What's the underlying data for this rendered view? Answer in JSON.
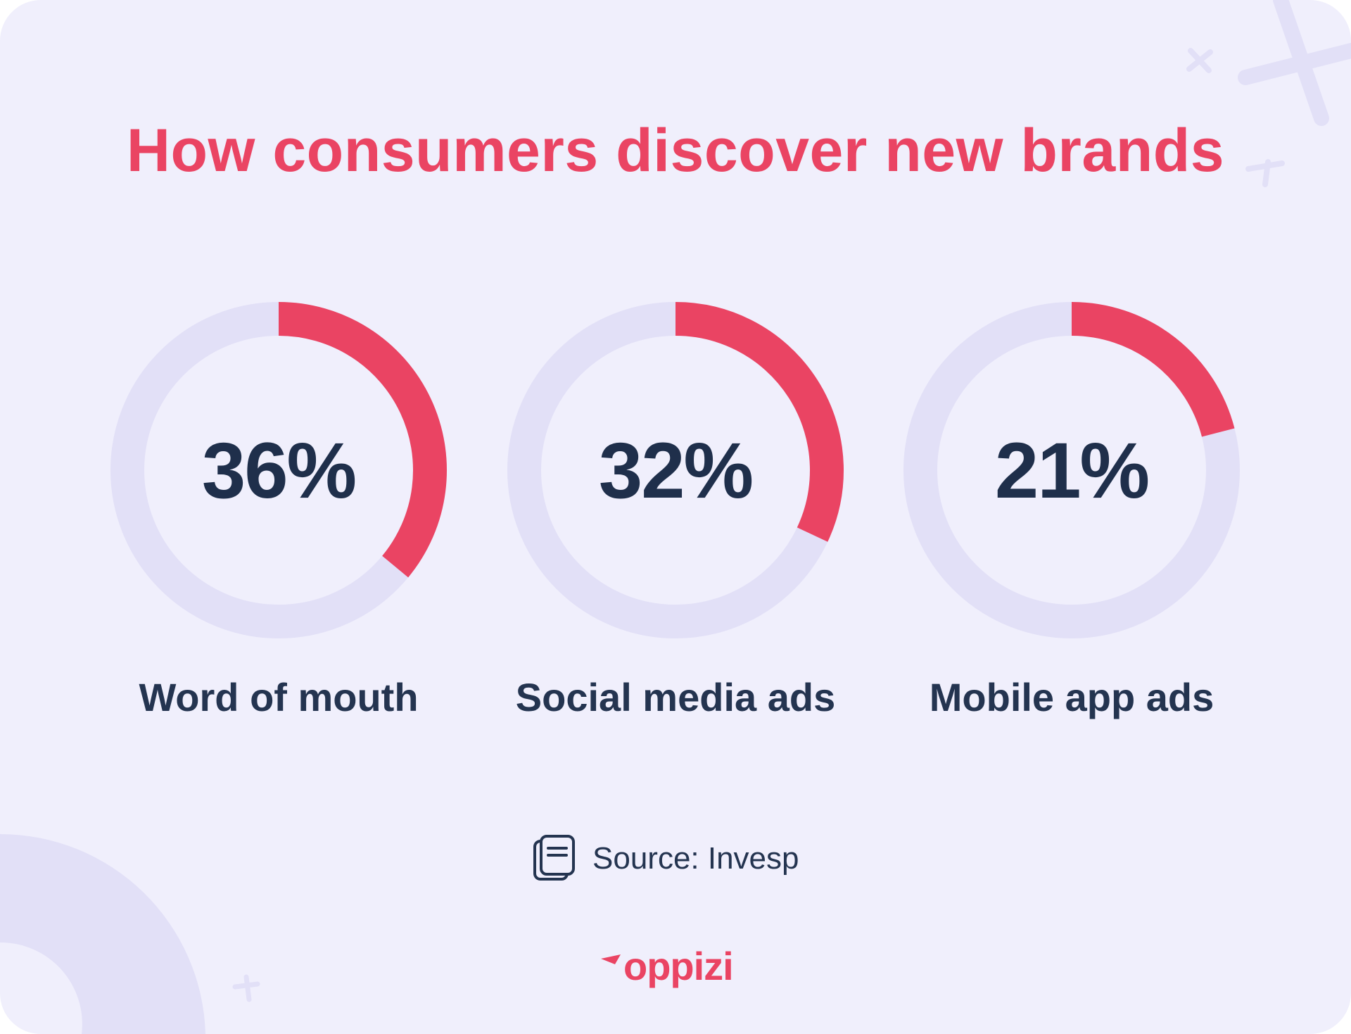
{
  "title": "How consumers discover new brands",
  "chart_data": {
    "type": "donut",
    "categories": [
      "Word of mouth",
      "Social media ads",
      "Mobile app ads"
    ],
    "values": [
      36,
      32,
      21
    ],
    "value_labels": [
      "36%",
      "32%",
      "21%"
    ],
    "max": 100,
    "unit": "%",
    "colors": {
      "fill": "#ea4463",
      "track": "#e2e0f7"
    }
  },
  "source": {
    "label": "Source: Invesp",
    "icon": "document-stack-icon"
  },
  "logo": {
    "text": "oppizi"
  }
}
